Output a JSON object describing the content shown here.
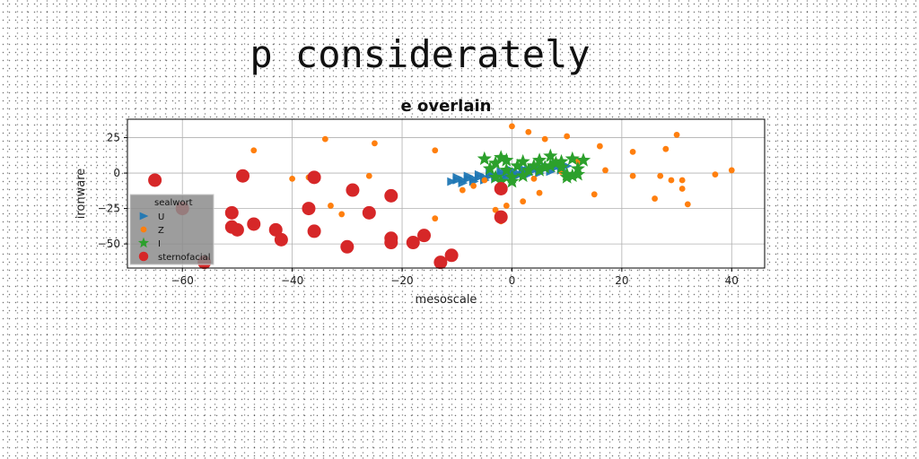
{
  "page": {
    "title": "p considerately"
  },
  "chart_data": {
    "type": "scatter",
    "title": "e overlain",
    "xlabel": "mesoscale",
    "ylabel": "ironware",
    "xlim": [
      -70,
      46
    ],
    "ylim": [
      -67,
      38
    ],
    "xticks": [
      -60,
      -40,
      -20,
      0,
      20,
      40
    ],
    "yticks": [
      25,
      0,
      -25,
      -50
    ],
    "grid": true,
    "legend": {
      "title": "sealwort",
      "placement": "lower-left",
      "entries": [
        {
          "label": "U",
          "color": "#1f77b4",
          "marker": "triangle"
        },
        {
          "label": "Z",
          "color": "#ff7f0e",
          "marker": "circle-small"
        },
        {
          "label": "I",
          "color": "#2ca02c",
          "marker": "star"
        },
        {
          "label": "sternofacial",
          "color": "#d62728",
          "marker": "circle-large"
        }
      ]
    },
    "series": [
      {
        "name": "U",
        "color": "#1f77b4",
        "marker": "triangle",
        "points": [
          [
            -11,
            -6
          ],
          [
            -10,
            -5
          ],
          [
            -9,
            -5
          ],
          [
            -8,
            -4
          ],
          [
            -7,
            -4
          ],
          [
            -6,
            -3
          ],
          [
            -5,
            -3
          ],
          [
            -4,
            -2
          ],
          [
            -3,
            -2
          ],
          [
            -2,
            -1
          ],
          [
            -1,
            -1
          ],
          [
            0,
            0
          ],
          [
            1,
            0
          ],
          [
            2,
            1
          ],
          [
            3,
            2
          ],
          [
            4,
            2
          ],
          [
            5,
            3
          ],
          [
            6,
            3
          ],
          [
            7,
            4
          ],
          [
            8,
            4
          ],
          [
            9,
            5
          ],
          [
            10,
            5
          ],
          [
            -10,
            -3
          ],
          [
            -8,
            -2
          ],
          [
            -6,
            -1
          ],
          [
            -4,
            0
          ],
          [
            -2,
            1
          ],
          [
            0,
            2
          ],
          [
            2,
            3
          ],
          [
            4,
            4
          ],
          [
            6,
            5
          ],
          [
            8,
            6
          ],
          [
            -9,
            -7
          ],
          [
            -7,
            -6
          ],
          [
            -5,
            -5
          ],
          [
            -3,
            -4
          ],
          [
            -1,
            -3
          ],
          [
            1,
            -2
          ],
          [
            3,
            -1
          ],
          [
            5,
            0
          ],
          [
            7,
            1
          ],
          [
            9,
            2
          ]
        ]
      },
      {
        "name": "Z",
        "color": "#ff7f0e",
        "marker": "circle-small",
        "points": [
          [
            -47,
            16
          ],
          [
            -34,
            24
          ],
          [
            -25,
            21
          ],
          [
            -40,
            -4
          ],
          [
            -37,
            -3
          ],
          [
            -26,
            -2
          ],
          [
            -33,
            -23
          ],
          [
            -31,
            -29
          ],
          [
            -14,
            16
          ],
          [
            -14,
            -32
          ],
          [
            -9,
            -12
          ],
          [
            -7,
            -9
          ],
          [
            -5,
            -5
          ],
          [
            -3,
            -26
          ],
          [
            -2,
            -31
          ],
          [
            -2,
            -34
          ],
          [
            0,
            33
          ],
          [
            3,
            29
          ],
          [
            4,
            -4
          ],
          [
            5,
            -14
          ],
          [
            6,
            24
          ],
          [
            8,
            8
          ],
          [
            9,
            1
          ],
          [
            10,
            26
          ],
          [
            12,
            8
          ],
          [
            15,
            -15
          ],
          [
            16,
            19
          ],
          [
            17,
            2
          ],
          [
            22,
            15
          ],
          [
            22,
            -2
          ],
          [
            26,
            -18
          ],
          [
            27,
            -2
          ],
          [
            28,
            17
          ],
          [
            29,
            -5
          ],
          [
            30,
            27
          ],
          [
            31,
            -5
          ],
          [
            31,
            -11
          ],
          [
            32,
            -22
          ],
          [
            37,
            -1
          ],
          [
            40,
            2
          ],
          [
            2,
            -20
          ],
          [
            -1,
            -23
          ]
        ]
      },
      {
        "name": "I",
        "color": "#2ca02c",
        "marker": "star",
        "points": [
          [
            -5,
            10
          ],
          [
            -4,
            3
          ],
          [
            -3,
            7
          ],
          [
            -2,
            11
          ],
          [
            -1,
            9
          ],
          [
            -1,
            2
          ],
          [
            0,
            -3
          ],
          [
            1,
            5
          ],
          [
            2,
            8
          ],
          [
            3,
            2
          ],
          [
            4,
            5
          ],
          [
            5,
            9
          ],
          [
            6,
            4
          ],
          [
            7,
            12
          ],
          [
            8,
            7
          ],
          [
            9,
            4
          ],
          [
            10,
            -1
          ],
          [
            10,
            -3
          ],
          [
            11,
            10
          ],
          [
            12,
            -1
          ],
          [
            13,
            9
          ],
          [
            -3,
            -3
          ],
          [
            -2,
            -6
          ],
          [
            0,
            -6
          ],
          [
            2,
            -2
          ],
          [
            5,
            2
          ],
          [
            7,
            5
          ],
          [
            9,
            8
          ],
          [
            11,
            -2
          ],
          [
            12,
            3
          ]
        ]
      },
      {
        "name": "sternofacial",
        "color": "#d62728",
        "marker": "circle-large",
        "points": [
          [
            -65,
            -5
          ],
          [
            -60,
            -25
          ],
          [
            -56,
            -63
          ],
          [
            -51,
            -28
          ],
          [
            -51,
            -38
          ],
          [
            -50,
            -40
          ],
          [
            -49,
            -2
          ],
          [
            -47,
            -36
          ],
          [
            -43,
            -40
          ],
          [
            -42,
            -47
          ],
          [
            -37,
            -25
          ],
          [
            -36,
            -3
          ],
          [
            -36,
            -41
          ],
          [
            -30,
            -52
          ],
          [
            -29,
            -12
          ],
          [
            -26,
            -28
          ],
          [
            -22,
            -16
          ],
          [
            -22,
            -46
          ],
          [
            -22,
            -49
          ],
          [
            -18,
            -49
          ],
          [
            -16,
            -44
          ],
          [
            -13,
            -63
          ],
          [
            -11,
            -58
          ],
          [
            -2,
            -11
          ],
          [
            -2,
            -31
          ]
        ]
      }
    ]
  }
}
